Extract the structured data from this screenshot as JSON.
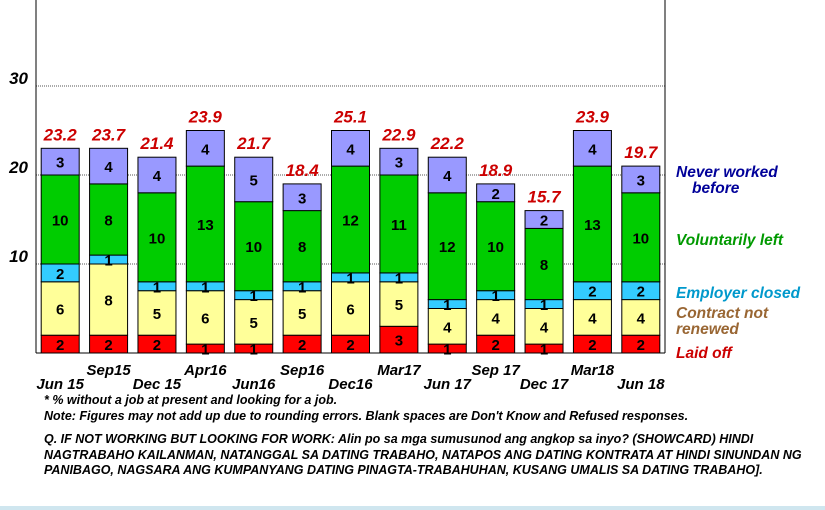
{
  "chart_data": {
    "type": "bar",
    "stacked": true,
    "categories": [
      "Jun 15",
      "Sep15",
      "Dec 15",
      "Apr16",
      "Jun16",
      "Sep16",
      "Dec16",
      "Mar17",
      "Jun 17",
      "Sep 17",
      "Dec 17",
      "Mar18",
      "Jun 18"
    ],
    "totals": [
      "23.2",
      "23.7",
      "21.4",
      "23.9",
      "21.7",
      "18.4",
      "25.1",
      "22.9",
      "22.2",
      "18.9",
      "15.7",
      "23.9",
      "19.7"
    ],
    "series": [
      {
        "name": "Laid off",
        "color": "#ff0000",
        "label_color": "#cc0000",
        "values": [
          2,
          2,
          2,
          1,
          1,
          2,
          2,
          3,
          1,
          2,
          1,
          2,
          2
        ]
      },
      {
        "name": "Contract not renewed",
        "color": "#ffff99",
        "label_color": "#996633",
        "values": [
          6,
          8,
          5,
          6,
          5,
          5,
          6,
          5,
          4,
          4,
          4,
          4,
          4
        ]
      },
      {
        "name": "Employer closed",
        "color": "#33ccff",
        "label_color": "#0099cc",
        "values": [
          2,
          1,
          1,
          1,
          1,
          1,
          1,
          1,
          1,
          1,
          1,
          2,
          2
        ]
      },
      {
        "name": "Voluntarily left",
        "color": "#00cc00",
        "label_color": "#009900",
        "values": [
          10,
          8,
          10,
          13,
          10,
          8,
          12,
          11,
          12,
          10,
          8,
          13,
          10
        ]
      },
      {
        "name": "Never worked before",
        "color": "#9999ff",
        "label_color": "#000099",
        "values": [
          3,
          4,
          4,
          4,
          5,
          3,
          4,
          3,
          4,
          2,
          2,
          4,
          3
        ]
      }
    ],
    "ylim": [
      0,
      40
    ],
    "yticks": [
      "10",
      "20",
      "30"
    ],
    "grid": true,
    "legend": "right"
  },
  "notes": {
    "footnote": "* % without a job at present and looking for a job.",
    "note": "Note: Figures may not add up due to rounding errors.  Blank spaces are Don't Know and Refused responses.",
    "question": "Q. IF NOT WORKING BUT LOOKING FOR WORK:  Alin po sa mga sumusunod ang angkop sa inyo? (SHOWCARD) HINDI NAGTRABAHO KAILANMAN, NATANGGAL SA DATING TRABAHO, NATAPOS ANG DATING KONTRATA AT HINDI SINUNDAN NG PANIBAGO, NAGSARA ANG KUMPANYANG DATING PINAGTA-TRABAHUHAN, KUSANG UMALIS SA DATING TRABAHO]."
  }
}
